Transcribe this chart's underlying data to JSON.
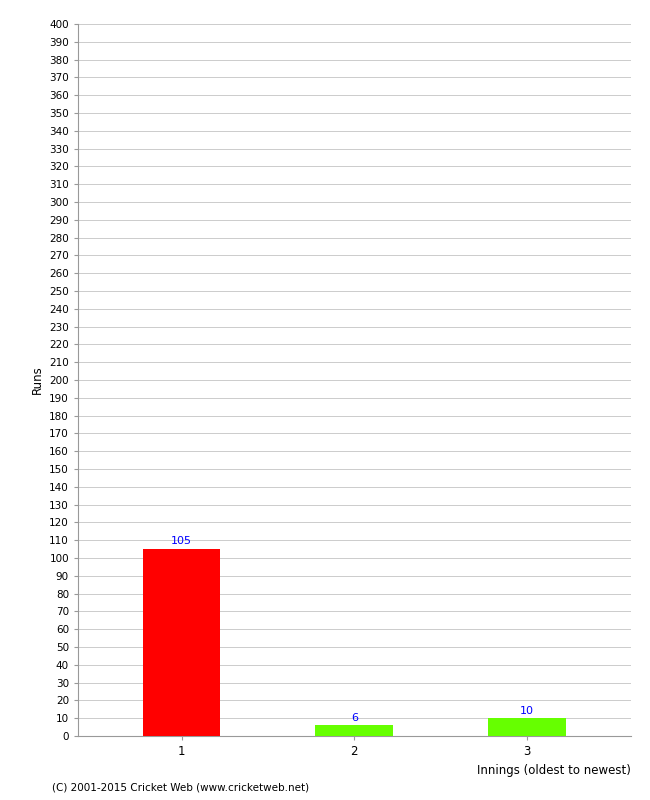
{
  "categories": [
    "1",
    "2",
    "3"
  ],
  "values": [
    105,
    6,
    10
  ],
  "bar_colors": [
    "#ff0000",
    "#66ff00",
    "#66ff00"
  ],
  "xlabel": "Innings (oldest to newest)",
  "ylabel": "Runs",
  "ylim": [
    0,
    400
  ],
  "ytick_step": 10,
  "background_color": "#ffffff",
  "grid_color": "#cccccc",
  "label_color": "#0000ff",
  "footer": "(C) 2001-2015 Cricket Web (www.cricketweb.net)"
}
